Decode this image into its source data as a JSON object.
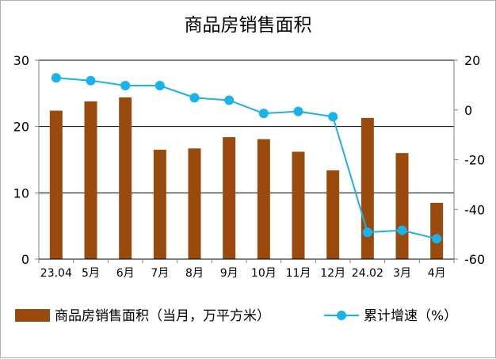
{
  "chart_data": {
    "type": "bar+line",
    "title": "商品房销售面积",
    "categories": [
      "23.04",
      "5月",
      "6月",
      "7月",
      "8月",
      "9月",
      "10月",
      "11月",
      "12月",
      "24.02",
      "3月",
      "4月"
    ],
    "series": [
      {
        "name": "商品房销售面积（当月，万平方米）",
        "type": "bar",
        "axis": "left",
        "color": "#9a4a0c",
        "values": [
          22.4,
          23.8,
          24.4,
          16.5,
          16.7,
          18.4,
          18.1,
          16.2,
          13.4,
          21.3,
          16.0,
          8.5
        ]
      },
      {
        "name": "累计增速（%）",
        "type": "line",
        "axis": "right",
        "color": "#1ab2ea",
        "values": [
          12.9,
          11.8,
          9.8,
          9.8,
          4.9,
          3.9,
          -1.4,
          -0.6,
          -2.7,
          -49.2,
          -48.4,
          -51.8
        ]
      }
    ],
    "y_left": {
      "ylim": [
        0,
        30
      ],
      "ticks": [
        "0",
        "10",
        "20",
        "30"
      ]
    },
    "y_right": {
      "ylim": [
        -60,
        20
      ],
      "ticks": [
        "-60",
        "-40",
        "-20",
        "0",
        "20"
      ]
    },
    "grid": true,
    "legend": "bottom"
  }
}
